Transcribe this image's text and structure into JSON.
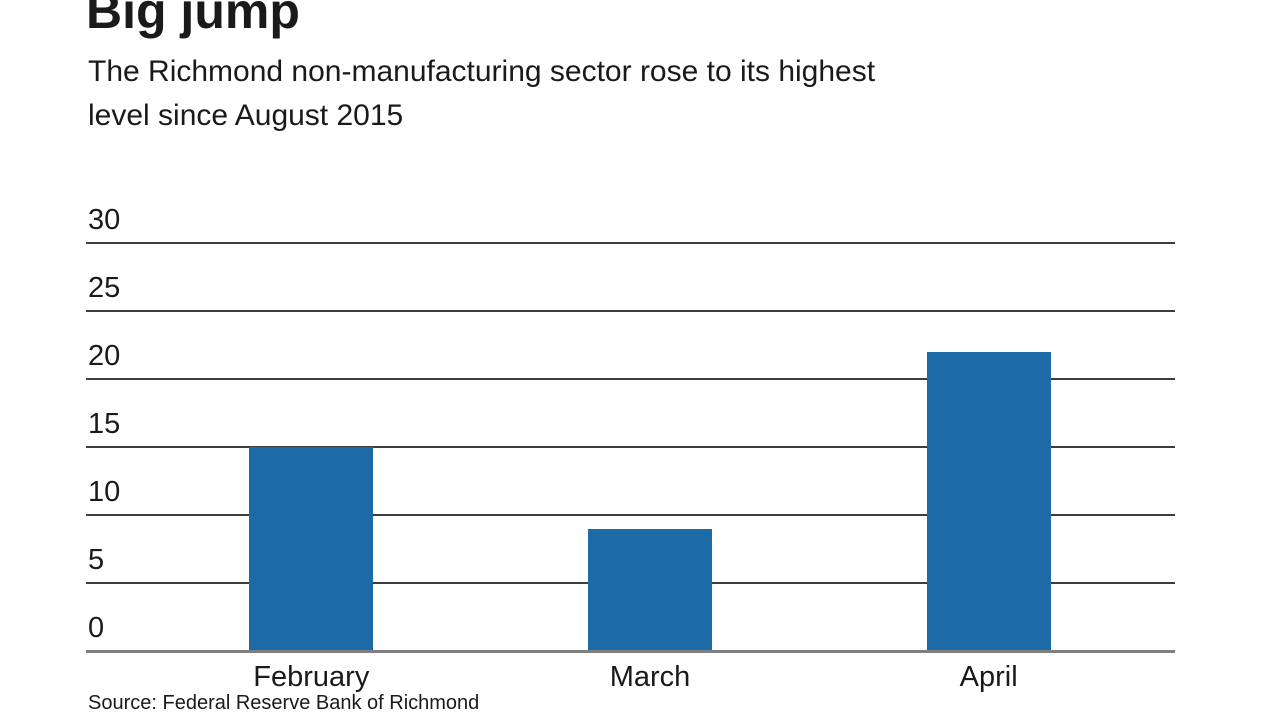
{
  "header": {
    "title": "Big jump",
    "subtitle_line1": "The Richmond non-manufacturing sector rose to its highest",
    "subtitle_line2": "level since August 2015"
  },
  "footer": {
    "source": "Source: Federal Reserve Bank of Richmond"
  },
  "colors": {
    "bar": "#1c6ba6",
    "gridline": "#3e3e3e",
    "baseline": "#7f7f7f",
    "text": "#1a1a1a"
  },
  "chart_data": {
    "type": "bar",
    "categories": [
      "February",
      "March",
      "April"
    ],
    "values": [
      15,
      9,
      22
    ],
    "title": "Big jump",
    "subtitle": "The Richmond non-manufacturing sector rose to its highest level since August 2015",
    "xlabel": "",
    "ylabel": "",
    "ylim": [
      0,
      30
    ],
    "yticks": [
      0,
      5,
      10,
      15,
      20,
      25,
      30
    ],
    "grid": true,
    "legend": false,
    "bar_color": "#1c6ba6",
    "source": "Source: Federal Reserve Bank of Richmond"
  }
}
